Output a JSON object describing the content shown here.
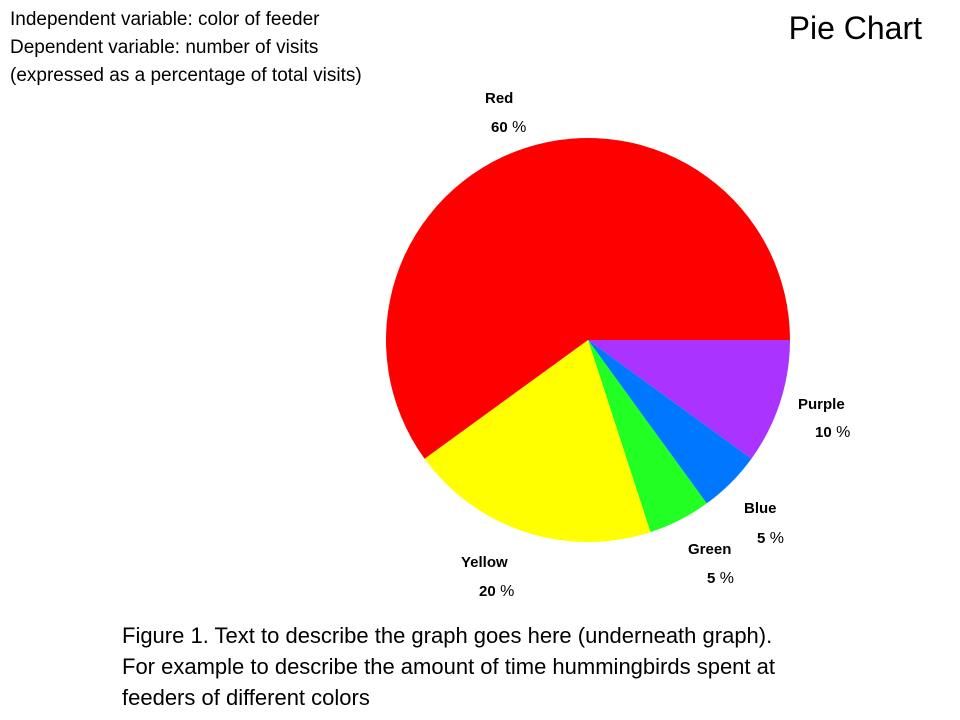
{
  "header": {
    "lines": [
      "Independent variable:  color of feeder",
      "Dependent variable:  number of visits",
      "(expressed as a percentage of total visits)"
    ]
  },
  "slide_title": "Pie Chart",
  "caption": {
    "lines": [
      "Figure 1.  Text to describe the graph goes here (underneath graph).",
      "For example to describe the amount of time hummingbirds spent at",
      "feeders of different colors"
    ]
  },
  "chart_data": {
    "type": "pie",
    "start_angle_deg": 0,
    "direction": "clockwise",
    "slices": [
      {
        "label": "Purple",
        "value": 10,
        "value_text": "10",
        "pct_sign": "%",
        "color": "#aa33ff"
      },
      {
        "label": "Blue",
        "value": 5,
        "value_text": "5",
        "pct_sign": "%",
        "color": "#0077ff"
      },
      {
        "label": "Green",
        "value": 5,
        "value_text": "5",
        "pct_sign": "%",
        "color": "#22ff22"
      },
      {
        "label": "Yellow",
        "value": 20,
        "value_text": "20",
        "pct_sign": "%",
        "color": "#ffff00"
      },
      {
        "label": "Red",
        "value": 60,
        "value_text": "60",
        "pct_sign": "%",
        "color": "#ff0000"
      }
    ]
  }
}
